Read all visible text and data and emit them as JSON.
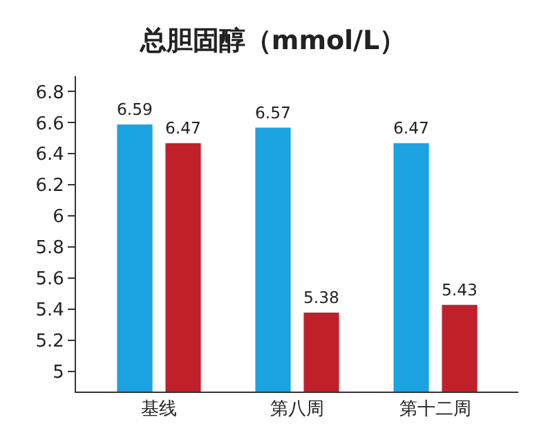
{
  "chart_data": {
    "type": "bar",
    "title": "总胆固醇（mmol/L）",
    "categories": [
      "基线",
      "第八周",
      "第十二周"
    ],
    "series": [
      {
        "color": "#1aa3e0",
        "values": [
          6.59,
          6.57,
          6.47
        ]
      },
      {
        "color": "#c0202a",
        "values": [
          6.47,
          5.38,
          5.43
        ]
      }
    ],
    "ylim": [
      4.87,
      6.9
    ],
    "yticks": [
      5,
      5.2,
      5.4,
      5.6,
      5.8,
      6,
      6.2,
      6.4,
      6.6,
      6.8
    ],
    "data_labels": true
  }
}
